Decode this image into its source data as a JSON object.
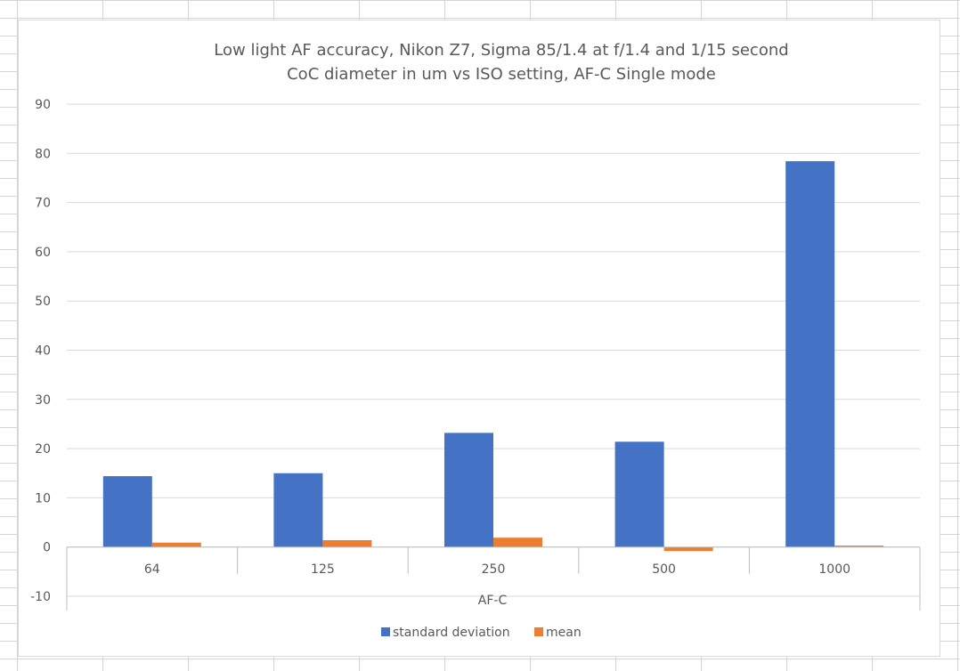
{
  "chart_data": {
    "type": "bar",
    "title_lines": [
      "Low light AF accuracy, Nikon Z7, Sigma 85/1.4 at f/1.4 and 1/15 second",
      "CoC diameter in um vs ISO setting, AF-C Single mode"
    ],
    "categories": [
      "64",
      "125",
      "250",
      "500",
      "1000"
    ],
    "group_label": "AF-C",
    "series": [
      {
        "name": "standard deviation",
        "color": "#4472c4",
        "values": [
          14.4,
          15.0,
          23.2,
          21.4,
          78.4
        ]
      },
      {
        "name": "mean",
        "color": "#ed7d31",
        "values": [
          0.9,
          1.4,
          1.9,
          -0.8,
          0.3
        ]
      }
    ],
    "ylim": [
      -10,
      90
    ],
    "yticks": [
      "90",
      "80",
      "70",
      "60",
      "50",
      "40",
      "30",
      "20",
      "10",
      "0",
      "-10"
    ],
    "grid": true,
    "legend_position": "bottom"
  }
}
